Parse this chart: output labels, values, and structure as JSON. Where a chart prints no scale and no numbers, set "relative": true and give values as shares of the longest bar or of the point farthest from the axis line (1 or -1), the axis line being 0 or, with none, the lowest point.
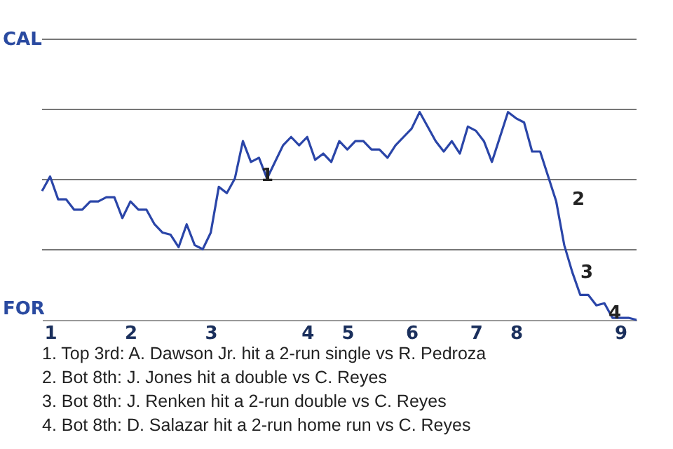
{
  "chart_data": {
    "type": "line",
    "relative": true,
    "categories": [
      null,
      "1",
      null,
      null,
      null,
      null,
      null,
      null,
      null,
      null,
      null,
      "2",
      null,
      null,
      null,
      null,
      null,
      null,
      null,
      null,
      null,
      "3",
      null,
      null,
      null,
      null,
      null,
      null,
      null,
      null,
      null,
      null,
      null,
      "4",
      null,
      null,
      null,
      null,
      "5",
      null,
      null,
      null,
      null,
      null,
      null,
      null,
      "6",
      null,
      null,
      null,
      null,
      null,
      null,
      null,
      "7",
      null,
      null,
      null,
      null,
      "8",
      null,
      null,
      null,
      null,
      null,
      null,
      null,
      null,
      null,
      null,
      null,
      null,
      "9",
      null,
      null
    ],
    "values": [
      0.62,
      0.69,
      0.58,
      0.58,
      0.53,
      0.53,
      0.57,
      0.57,
      0.59,
      0.59,
      0.49,
      0.57,
      0.53,
      0.53,
      0.46,
      0.42,
      0.41,
      0.35,
      0.46,
      0.36,
      0.34,
      0.42,
      0.64,
      0.61,
      0.68,
      0.86,
      0.76,
      0.78,
      0.68,
      0.76,
      0.84,
      0.88,
      0.84,
      0.88,
      0.77,
      0.8,
      0.76,
      0.86,
      0.82,
      0.86,
      0.86,
      0.82,
      0.82,
      0.78,
      0.84,
      0.88,
      0.92,
      1,
      0.93,
      0.86,
      0.81,
      0.86,
      0.8,
      0.93,
      0.91,
      0.86,
      0.76,
      0.88,
      1,
      0.97,
      0.95,
      0.81,
      0.81,
      0.69,
      0.57,
      0.36,
      0.23,
      0.12,
      0.12,
      0.07,
      0.08,
      0.01,
      0.01,
      0.01,
      0
    ],
    "color": "#2a45a8",
    "line_style": "solid",
    "ref_lines": [
      {
        "axis": "y",
        "value": 0.3375,
        "color": "#777777"
      },
      {
        "axis": "y",
        "value": 0.675,
        "color": "#777777"
      },
      {
        "axis": "y",
        "value": 1.0125,
        "color": "#777777"
      },
      {
        "axis": "y",
        "value": 1.35,
        "color": "#777777"
      }
    ],
    "annotations": [
      "CAL",
      "FOR",
      "1",
      "2",
      "3",
      "4",
      "1. Top 3rd: A. Dawson Jr. hit a 2-run single vs R. Pedroza",
      "2. Bot 8th: J. Jones hit a double vs C. Reyes",
      "3. Bot 8th: J. Renken hit a 2-run double vs C. Reyes",
      "4. Bot 8th: D. Salazar hit a 2-run home run vs C. Reyes"
    ]
  }
}
